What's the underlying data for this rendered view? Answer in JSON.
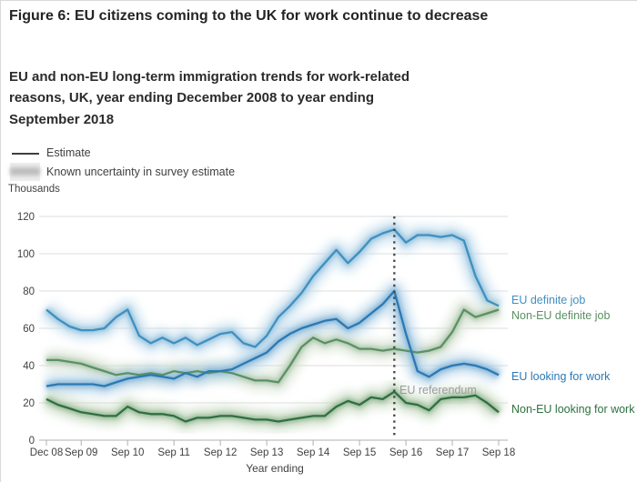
{
  "header": {
    "title": "Figure 6: EU citizens coming to the UK for work continue to decrease",
    "subtitle": "EU and non-EU long-term immigration trends for work-related reasons, UK, year ending December 2008 to year ending September 2018"
  },
  "legend": {
    "estimate": "Estimate",
    "uncertainty": "Known uncertainty in survey estimate"
  },
  "chart_data": {
    "type": "line",
    "ylabel": "Thousands",
    "xlabel": "Year ending",
    "ylim": [
      0,
      120
    ],
    "grid": true,
    "y_ticks": [
      0,
      20,
      40,
      60,
      80,
      100,
      120
    ],
    "x_ticks": [
      "Dec 08",
      "Sep 09",
      "Sep 10",
      "Sep 11",
      "Sep 12",
      "Sep 13",
      "Sep 14",
      "Sep 15",
      "Sep 16",
      "Sep 17",
      "Sep 18"
    ],
    "x_tick_indices": [
      0,
      3,
      7,
      11,
      15,
      19,
      23,
      27,
      31,
      35,
      39
    ],
    "categories": [
      "Dec 08",
      "Mar 09",
      "Jun 09",
      "Sep 09",
      "Dec 09",
      "Mar 10",
      "Jun 10",
      "Sep 10",
      "Dec 10",
      "Mar 11",
      "Jun 11",
      "Sep 11",
      "Dec 11",
      "Mar 12",
      "Jun 12",
      "Sep 12",
      "Dec 12",
      "Mar 13",
      "Jun 13",
      "Sep 13",
      "Dec 13",
      "Mar 14",
      "Jun 14",
      "Sep 14",
      "Dec 14",
      "Mar 15",
      "Jun 15",
      "Sep 15",
      "Dec 15",
      "Mar 16",
      "Jun 16",
      "Sep 16",
      "Dec 16",
      "Mar 17",
      "Jun 17",
      "Sep 17",
      "Dec 17",
      "Mar 18",
      "Jun 18",
      "Sep 18"
    ],
    "series": [
      {
        "name": "EU definite job",
        "color": "#3f90c0",
        "band_color": "#c3dded",
        "values": [
          70,
          65,
          61,
          59,
          59,
          60,
          66,
          70,
          56,
          52,
          55,
          52,
          55,
          51,
          54,
          57,
          58,
          52,
          50,
          56,
          66,
          72,
          79,
          88,
          95,
          102,
          95,
          101,
          108,
          111,
          113,
          106,
          110,
          110,
          109,
          110,
          107,
          88,
          75,
          72
        ]
      },
      {
        "name": "Non-EU definite job",
        "color": "#5b9164",
        "band_color": "#d5e1d0",
        "values": [
          43,
          43,
          42,
          41,
          39,
          37,
          35,
          36,
          35,
          36,
          35,
          37,
          36,
          37,
          36,
          37,
          36,
          34,
          32,
          32,
          31,
          40,
          50,
          55,
          52,
          54,
          52,
          49,
          49,
          48,
          49,
          48,
          47,
          48,
          50,
          58,
          70,
          66,
          68,
          70
        ]
      },
      {
        "name": "EU looking for work",
        "color": "#2b79b4",
        "band_color": "#b6d4e8",
        "values": [
          29,
          30,
          30,
          30,
          30,
          29,
          31,
          33,
          34,
          35,
          34,
          33,
          36,
          34,
          37,
          37,
          38,
          41,
          44,
          47,
          53,
          57,
          60,
          62,
          64,
          65,
          60,
          63,
          68,
          73,
          80,
          57,
          37,
          34,
          38,
          40,
          41,
          40,
          38,
          35
        ]
      },
      {
        "name": "Non-EU looking for work",
        "color": "#2f7040",
        "band_color": "#c6d9c0",
        "values": [
          22,
          19,
          17,
          15,
          14,
          13,
          13,
          18,
          15,
          14,
          14,
          13,
          10,
          12,
          12,
          13,
          13,
          12,
          11,
          11,
          10,
          11,
          12,
          13,
          13,
          18,
          21,
          19,
          23,
          22,
          26,
          20,
          19,
          16,
          22,
          23,
          23,
          24,
          20,
          15
        ]
      }
    ],
    "annotation": {
      "label": "EU referendum",
      "category": "Jun 16",
      "index": 30
    }
  }
}
